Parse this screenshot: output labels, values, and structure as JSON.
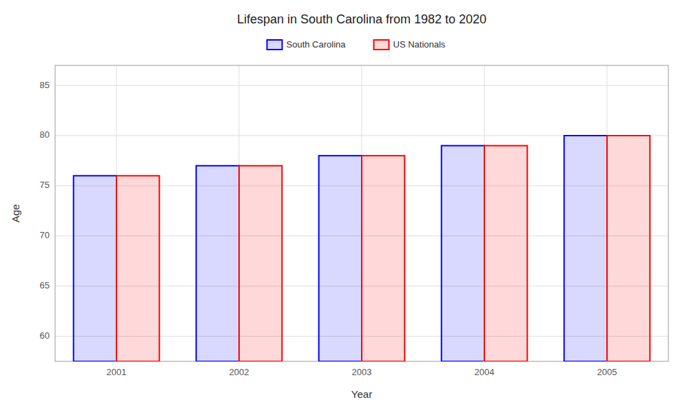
{
  "chart_data": {
    "type": "bar",
    "title": "Lifespan in South Carolina from 1982 to 2020",
    "x_label": "Year",
    "y_label": "Age",
    "categories": [
      "2001",
      "2002",
      "2003",
      "2004",
      "2005"
    ],
    "series": [
      {
        "name": "South Carolina",
        "color": "#0000ff",
        "values": [
          76,
          77,
          78,
          79,
          80
        ]
      },
      {
        "name": "US Nationals",
        "color": "#ff0000",
        "values": [
          76,
          77,
          78,
          79,
          80
        ]
      }
    ],
    "ylim": [
      57.5,
      87
    ],
    "yticks": [
      60,
      65,
      70,
      75,
      80,
      85
    ],
    "grid": true,
    "legend": "top"
  }
}
